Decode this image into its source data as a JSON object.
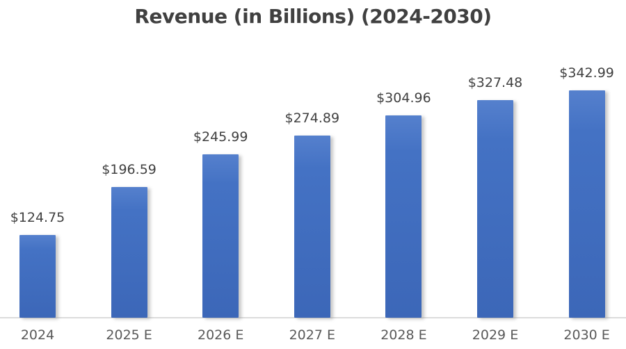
{
  "chart_data": {
    "type": "bar",
    "title": "Revenue (in Billions) (2024-2030)",
    "categories": [
      "2024",
      "2025 E",
      "2026 E",
      "2027 E",
      "2028 E",
      "2029 E",
      "2030 E"
    ],
    "values": [
      124.75,
      196.59,
      245.99,
      274.89,
      304.96,
      327.48,
      342.99
    ],
    "data_labels": [
      "$124.75",
      "$196.59",
      "$245.99",
      "$274.89",
      "$304.96",
      "$327.48",
      "$342.99"
    ],
    "xlabel": "",
    "ylabel": "",
    "ylim": [
      0,
      350
    ],
    "grid": false,
    "legend": false,
    "y_axis_visible": false,
    "bar_color": "#4472c4",
    "bar_gradient_top": "#5580cd",
    "bar_gradient_bottom": "#3c67b8",
    "title_color": "#404040",
    "data_label_color": "#404040",
    "tick_label_color": "#595959",
    "axis_line_color": "#dcdcdc",
    "background_color": "#ffffff"
  }
}
